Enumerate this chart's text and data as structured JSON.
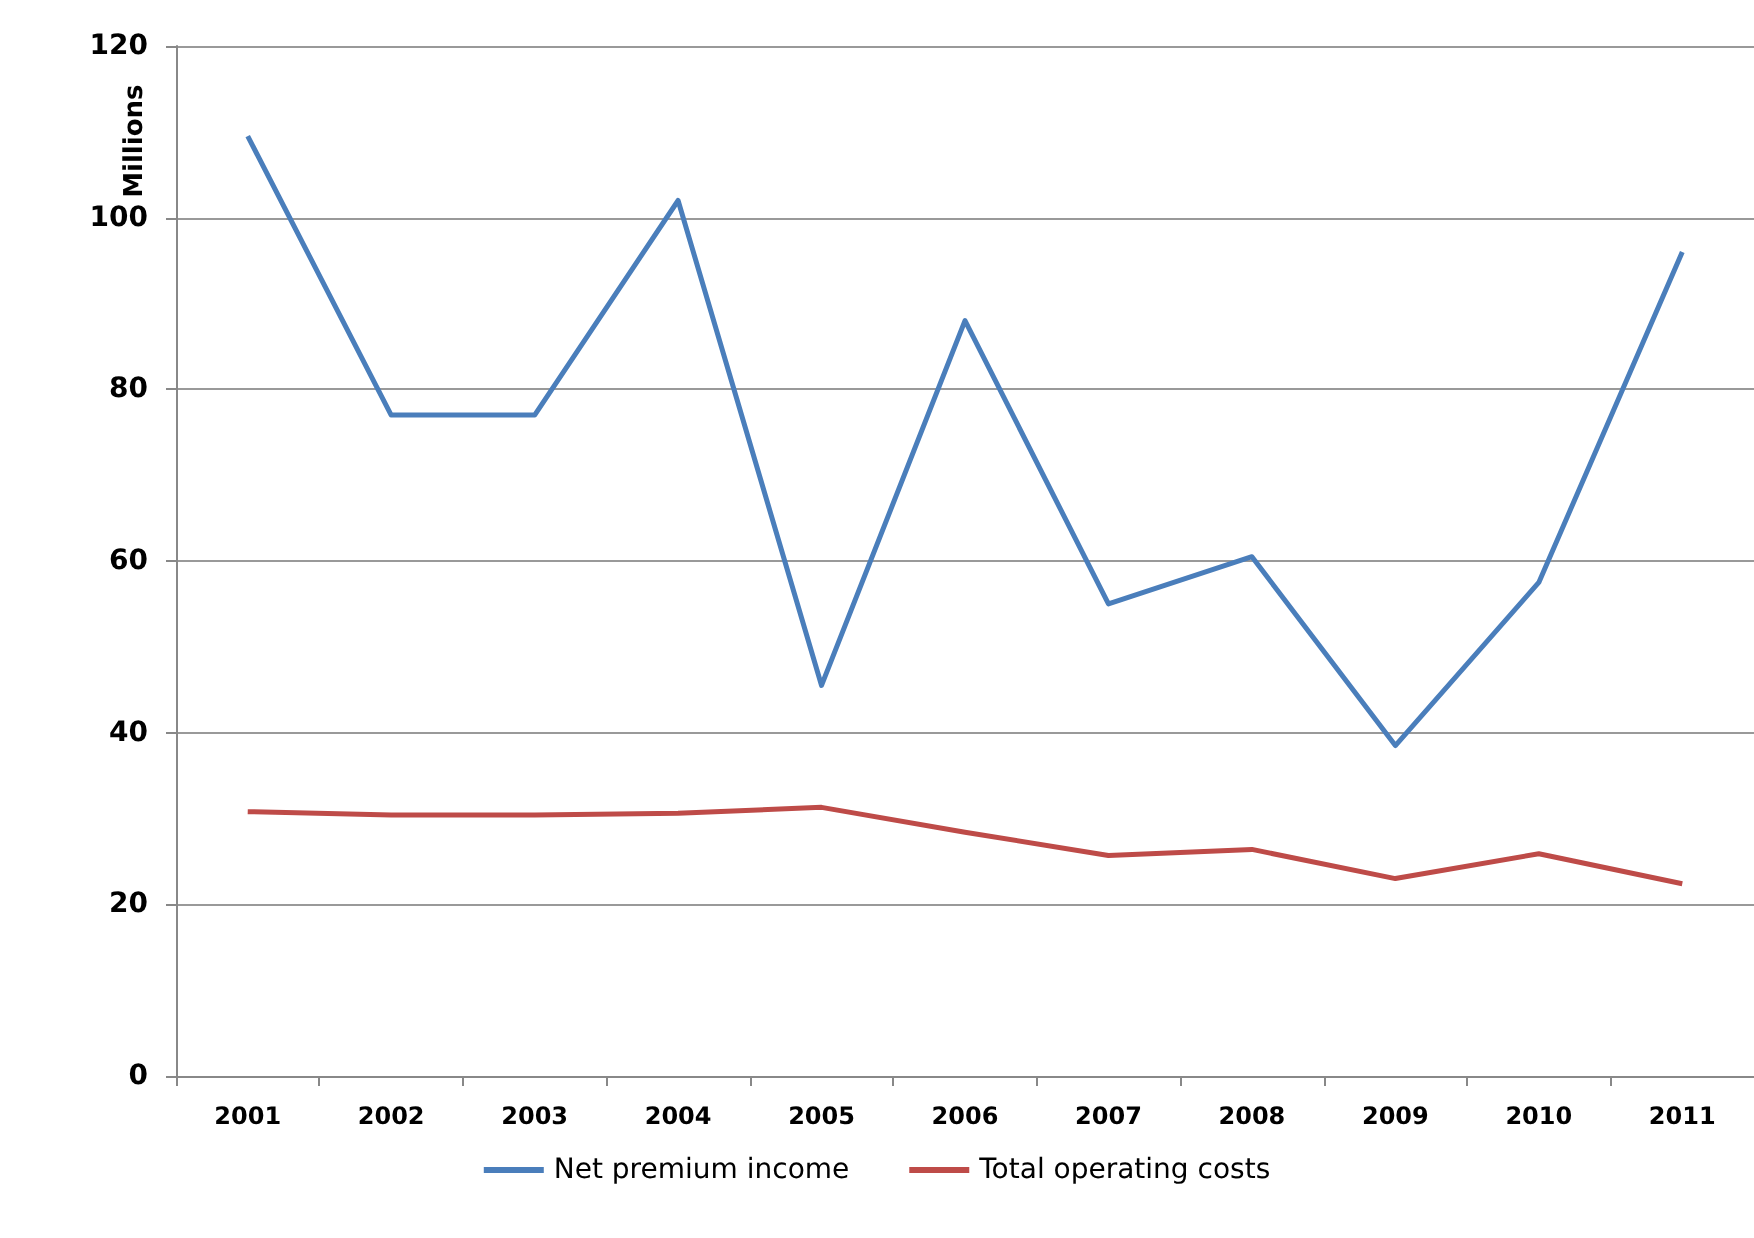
{
  "chart_data": {
    "type": "line",
    "ylabel": "Millions",
    "categories": [
      "2001",
      "2002",
      "2003",
      "2004",
      "2005",
      "2006",
      "2007",
      "2008",
      "2009",
      "2010",
      "2011"
    ],
    "series": [
      {
        "name": "Net premium income",
        "color": "#4a7ebb",
        "values": [
          109.5,
          77,
          77,
          102,
          45.5,
          88,
          55,
          60.5,
          38.5,
          57.5,
          96
        ]
      },
      {
        "name": "Total operating costs",
        "color": "#be4b48",
        "values": [
          30.8,
          30.4,
          30.4,
          30.6,
          31.3,
          28.4,
          25.7,
          26.4,
          23,
          25.9,
          22.4
        ]
      }
    ],
    "ylim": [
      0,
      120
    ],
    "yticks": [
      0,
      20,
      40,
      60,
      80,
      100,
      120
    ],
    "grid": "y",
    "legend": "bottom",
    "marker": "none",
    "line_style": "solid"
  }
}
